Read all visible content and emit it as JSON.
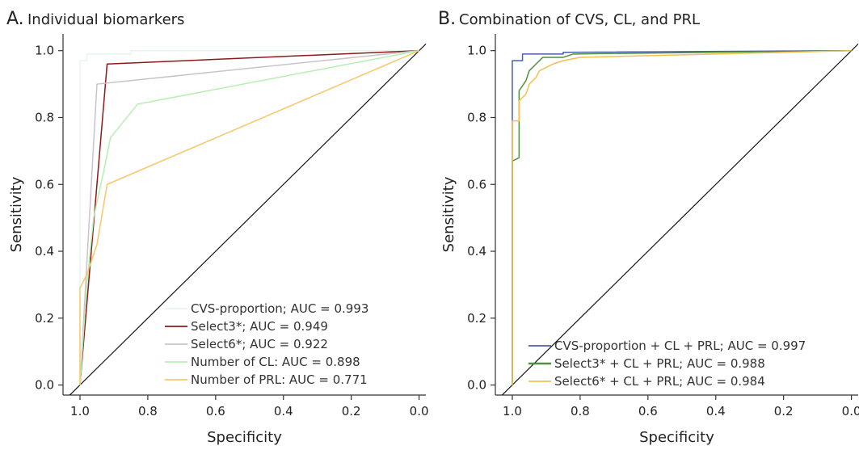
{
  "chart_data": [
    {
      "type": "line",
      "panel_letter": "A.",
      "title": "Individual biomarkers",
      "xlabel": "Specificity",
      "ylabel": "Sensitivity",
      "xlim": [
        1.05,
        -0.02
      ],
      "ylim": [
        -0.03,
        1.05
      ],
      "x_reversed": true,
      "xticks": [
        "1.0",
        "0.8",
        "0.6",
        "0.4",
        "0.2",
        "0.0"
      ],
      "yticks": [
        "0.0",
        "0.2",
        "0.4",
        "0.6",
        "0.8",
        "1.0"
      ],
      "grid": false,
      "legend_position": "bottom-right",
      "series": [
        {
          "name": "CVS-proportion; AUC = 0.993",
          "color": "#e6f4ef",
          "points": [
            [
              1.0,
              0.0
            ],
            [
              1.0,
              0.97
            ],
            [
              0.98,
              0.97
            ],
            [
              0.98,
              0.99
            ],
            [
              0.85,
              0.99
            ],
            [
              0.85,
              1.0
            ],
            [
              0.0,
              1.0
            ]
          ]
        },
        {
          "name": "Select3*; AUC = 0.949",
          "color": "#8b1a1a",
          "points": [
            [
              1.0,
              0.0
            ],
            [
              0.92,
              0.96
            ],
            [
              0.0,
              1.0
            ]
          ]
        },
        {
          "name": "Select6*; AUC = 0.922",
          "color": "#c9c4cc",
          "points": [
            [
              1.0,
              0.0
            ],
            [
              0.95,
              0.9
            ],
            [
              0.0,
              1.0
            ]
          ]
        },
        {
          "name": "Number of CL: AUC = 0.898",
          "color": "#b6efb0",
          "points": [
            [
              1.0,
              0.0
            ],
            [
              0.98,
              0.3
            ],
            [
              0.96,
              0.5
            ],
            [
              0.93,
              0.64
            ],
            [
              0.91,
              0.74
            ],
            [
              0.83,
              0.84
            ],
            [
              0.0,
              1.0
            ]
          ]
        },
        {
          "name": "Number of PRL: AUC = 0.771",
          "color": "#f7c76a",
          "points": [
            [
              1.0,
              0.0
            ],
            [
              1.0,
              0.29
            ],
            [
              0.98,
              0.33
            ],
            [
              0.95,
              0.42
            ],
            [
              0.92,
              0.6
            ],
            [
              0.0,
              1.0
            ]
          ]
        }
      ]
    },
    {
      "type": "line",
      "panel_letter": "B.",
      "title": "Combination of CVS, CL, and PRL",
      "xlabel": "Specificity",
      "ylabel": "Sensitivity",
      "xlim": [
        1.05,
        -0.02
      ],
      "ylim": [
        -0.03,
        1.05
      ],
      "x_reversed": true,
      "xticks": [
        "1.0",
        "0.8",
        "0.6",
        "0.4",
        "0.2",
        "0.0"
      ],
      "yticks": [
        "0.0",
        "0.2",
        "0.4",
        "0.6",
        "0.8",
        "1.0"
      ],
      "grid": false,
      "legend_position": "bottom-right",
      "series": [
        {
          "name": "CVS-proportion + CL + PRL; AUC = 0.997",
          "color": "#4b5fa8",
          "points": [
            [
              1.0,
              0.0
            ],
            [
              1.0,
              0.97
            ],
            [
              0.97,
              0.97
            ],
            [
              0.97,
              0.99
            ],
            [
              0.85,
              0.99
            ],
            [
              0.85,
              0.995
            ],
            [
              0.0,
              1.0
            ]
          ]
        },
        {
          "name": "Select3* + CL + PRL; AUC = 0.988",
          "color": "#4f8f3f",
          "points": [
            [
              1.0,
              0.0
            ],
            [
              1.0,
              0.67
            ],
            [
              0.98,
              0.68
            ],
            [
              0.98,
              0.88
            ],
            [
              0.96,
              0.91
            ],
            [
              0.95,
              0.94
            ],
            [
              0.93,
              0.96
            ],
            [
              0.91,
              0.98
            ],
            [
              0.85,
              0.98
            ],
            [
              0.82,
              0.99
            ],
            [
              0.0,
              1.0
            ]
          ]
        },
        {
          "name": "Select6* + CL + PRL; AUC = 0.984",
          "color": "#f2c14e",
          "points": [
            [
              1.0,
              0.0
            ],
            [
              1.0,
              0.79
            ],
            [
              0.98,
              0.79
            ],
            [
              0.98,
              0.85
            ],
            [
              0.96,
              0.87
            ],
            [
              0.95,
              0.9
            ],
            [
              0.93,
              0.92
            ],
            [
              0.92,
              0.94
            ],
            [
              0.88,
              0.96
            ],
            [
              0.85,
              0.97
            ],
            [
              0.8,
              0.98
            ],
            [
              0.0,
              1.0
            ]
          ]
        }
      ]
    }
  ]
}
